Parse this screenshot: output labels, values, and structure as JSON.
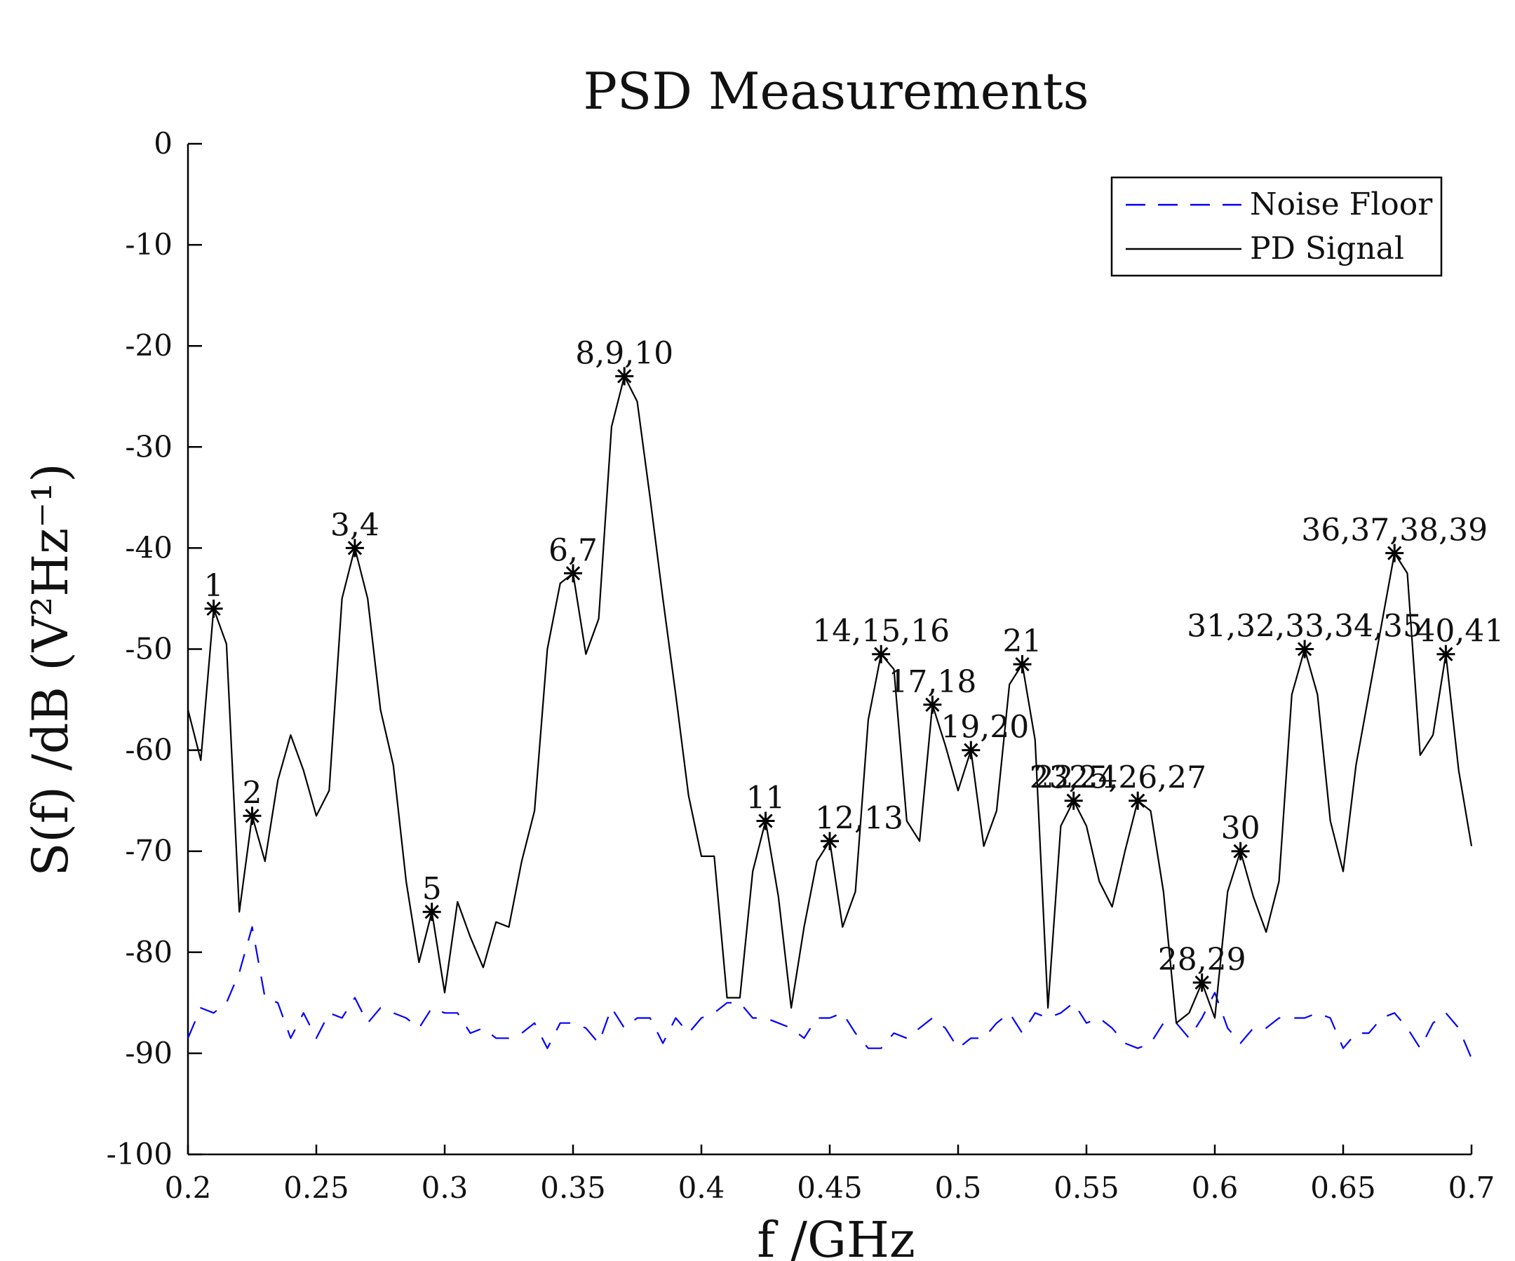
{
  "chart_data": {
    "type": "line",
    "title": "PSD Measurements",
    "xlabel": "f /GHz",
    "ylabel": "S(f) /dB (V²Hz⁻¹)",
    "xlim": [
      0.2,
      0.7
    ],
    "ylim": [
      -100,
      0
    ],
    "xticks": [
      0.2,
      0.25,
      0.3,
      0.35,
      0.4,
      0.45,
      0.5,
      0.55,
      0.6,
      0.65,
      0.7
    ],
    "xtick_labels": [
      "0.2",
      "0.25",
      "0.3",
      "0.35",
      "0.4",
      "0.45",
      "0.5",
      "0.55",
      "0.6",
      "0.65",
      "0.7"
    ],
    "yticks": [
      0,
      -10,
      -20,
      -30,
      -40,
      -50,
      -60,
      -70,
      -80,
      -90,
      -100
    ],
    "ytick_labels": [
      "0",
      "-10",
      "-20",
      "-30",
      "-40",
      "-50",
      "-60",
      "-70",
      "-80",
      "-90",
      "-100"
    ],
    "legend": {
      "placement": "top-right",
      "entries": [
        "Noise Floor",
        "PD Signal"
      ]
    },
    "series": [
      {
        "name": "Noise Floor",
        "color": "#0000ff",
        "style": "dashed",
        "x": [
          0.2,
          0.205,
          0.21,
          0.215,
          0.22,
          0.225,
          0.23,
          0.235,
          0.24,
          0.245,
          0.25,
          0.255,
          0.26,
          0.265,
          0.27,
          0.275,
          0.28,
          0.285,
          0.29,
          0.295,
          0.3,
          0.305,
          0.31,
          0.315,
          0.32,
          0.325,
          0.33,
          0.335,
          0.34,
          0.345,
          0.35,
          0.355,
          0.36,
          0.365,
          0.37,
          0.375,
          0.38,
          0.385,
          0.39,
          0.395,
          0.4,
          0.405,
          0.41,
          0.415,
          0.42,
          0.425,
          0.43,
          0.435,
          0.44,
          0.445,
          0.45,
          0.455,
          0.46,
          0.465,
          0.47,
          0.475,
          0.48,
          0.485,
          0.49,
          0.495,
          0.5,
          0.505,
          0.51,
          0.515,
          0.52,
          0.525,
          0.53,
          0.535,
          0.54,
          0.545,
          0.55,
          0.555,
          0.56,
          0.565,
          0.57,
          0.575,
          0.58,
          0.585,
          0.59,
          0.595,
          0.6,
          0.605,
          0.61,
          0.615,
          0.62,
          0.625,
          0.63,
          0.635,
          0.64,
          0.645,
          0.65,
          0.655,
          0.66,
          0.665,
          0.67,
          0.675,
          0.68,
          0.685,
          0.69,
          0.695,
          0.7
        ],
        "values": [
          -88.5,
          -85.5,
          -86,
          -85,
          -82,
          -77.5,
          -84.5,
          -85,
          -88.5,
          -86,
          -88.5,
          -86,
          -86.5,
          -84.5,
          -87,
          -85.5,
          -86,
          -86.5,
          -87.5,
          -85.5,
          -86,
          -86,
          -88,
          -87.5,
          -88.5,
          -88.5,
          -88,
          -87,
          -89.5,
          -87,
          -87,
          -87.5,
          -89,
          -85.5,
          -87.5,
          -86.5,
          -86.5,
          -89,
          -86.5,
          -88,
          -86.5,
          -86,
          -85,
          -85,
          -86.5,
          -86.5,
          -87,
          -87.5,
          -88.5,
          -86.5,
          -86.5,
          -86,
          -88,
          -89.5,
          -89.5,
          -88,
          -88.5,
          -87.5,
          -86.5,
          -87.5,
          -89.5,
          -88.5,
          -88.5,
          -87,
          -86,
          -88,
          -86,
          -86.5,
          -86,
          -85,
          -87,
          -86.5,
          -87.5,
          -89,
          -89.5,
          -89,
          -87,
          -87,
          -88.5,
          -86.5,
          -84,
          -87.5,
          -89,
          -87.5,
          -87.5,
          -86.5,
          -86.5,
          -86.5,
          -86,
          -86.5,
          -89.5,
          -88,
          -88,
          -86.5,
          -86,
          -87.5,
          -89.5,
          -87,
          -86,
          -87.5,
          -90.5
        ]
      },
      {
        "name": "PD Signal",
        "color": "#000000",
        "style": "solid",
        "x": [
          0.2,
          0.205,
          0.21,
          0.215,
          0.22,
          0.225,
          0.23,
          0.235,
          0.24,
          0.245,
          0.25,
          0.255,
          0.26,
          0.265,
          0.27,
          0.275,
          0.28,
          0.285,
          0.29,
          0.295,
          0.3,
          0.305,
          0.31,
          0.315,
          0.32,
          0.325,
          0.33,
          0.335,
          0.34,
          0.345,
          0.35,
          0.355,
          0.36,
          0.365,
          0.37,
          0.375,
          0.38,
          0.385,
          0.39,
          0.395,
          0.4,
          0.405,
          0.41,
          0.415,
          0.42,
          0.425,
          0.43,
          0.435,
          0.44,
          0.445,
          0.45,
          0.455,
          0.46,
          0.465,
          0.47,
          0.475,
          0.48,
          0.485,
          0.49,
          0.495,
          0.5,
          0.505,
          0.51,
          0.515,
          0.52,
          0.525,
          0.53,
          0.535,
          0.54,
          0.545,
          0.55,
          0.555,
          0.56,
          0.565,
          0.57,
          0.575,
          0.58,
          0.585,
          0.59,
          0.595,
          0.6,
          0.605,
          0.61,
          0.615,
          0.62,
          0.625,
          0.63,
          0.635,
          0.64,
          0.645,
          0.65,
          0.655,
          0.66,
          0.665,
          0.67,
          0.675,
          0.68,
          0.685,
          0.69,
          0.695,
          0.7
        ],
        "values": [
          -56,
          -61,
          -46,
          -49.5,
          -76,
          -66.5,
          -71,
          -63,
          -58.5,
          -62,
          -66.5,
          -64,
          -45,
          -40,
          -45,
          -56,
          -61.5,
          -73,
          -81,
          -76,
          -84,
          -75,
          -78.5,
          -81.5,
          -77,
          -77.5,
          -71,
          -66,
          -50,
          -43.5,
          -42.5,
          -50.5,
          -47,
          -28,
          -23,
          -25.5,
          -35,
          -45,
          -54.5,
          -64.5,
          -70.5,
          -70.5,
          -84.5,
          -84.5,
          -72,
          -67,
          -74.5,
          -85.5,
          -77.5,
          -71,
          -69,
          -77.5,
          -74,
          -57,
          -50.5,
          -52,
          -67,
          -69,
          -55.5,
          -59.5,
          -64,
          -60,
          -69.5,
          -66,
          -53.5,
          -51.5,
          -59,
          -85.5,
          -67.5,
          -65,
          -67.5,
          -73,
          -75.5,
          -70,
          -65,
          -66,
          -74,
          -87,
          -86,
          -83,
          -86.5,
          -74,
          -70,
          -74.5,
          -78,
          -73,
          -54.5,
          -50,
          -54.5,
          -67,
          -72,
          -61.5,
          -54.5,
          -47.5,
          -40.5,
          -42.5,
          -60.5,
          -58.5,
          -50.5,
          -62,
          -69.5
        ]
      }
    ],
    "peaks": [
      {
        "label": "1",
        "x": 0.21,
        "y": -46
      },
      {
        "label": "2",
        "x": 0.225,
        "y": -66.5
      },
      {
        "label": "3,4",
        "x": 0.265,
        "y": -40
      },
      {
        "label": "5",
        "x": 0.295,
        "y": -76
      },
      {
        "label": "6,7",
        "x": 0.35,
        "y": -42.5
      },
      {
        "label": "8,9,10",
        "x": 0.37,
        "y": -23
      },
      {
        "label": "11",
        "x": 0.425,
        "y": -67
      },
      {
        "label": "12,13",
        "x": 0.45,
        "y": -69
      },
      {
        "label": "14,15,16",
        "x": 0.47,
        "y": -50.5
      },
      {
        "label": "17,18",
        "x": 0.49,
        "y": -55.5
      },
      {
        "label": "19,20",
        "x": 0.505,
        "y": -60
      },
      {
        "label": "21",
        "x": 0.525,
        "y": -51.5
      },
      {
        "label": "22",
        "x": 0.545,
        "y": -65
      },
      {
        "label": "23,24",
        "x": 0.545,
        "y": -65
      },
      {
        "label": "25,26,27",
        "x": 0.57,
        "y": -65
      },
      {
        "label": "28,29",
        "x": 0.595,
        "y": -83
      },
      {
        "label": "30",
        "x": 0.61,
        "y": -70
      },
      {
        "label": "31,32,33,34,35",
        "x": 0.635,
        "y": -50
      },
      {
        "label": "36,37,38,39",
        "x": 0.67,
        "y": -40.5
      },
      {
        "label": "40,41",
        "x": 0.69,
        "y": -50.5
      }
    ]
  }
}
